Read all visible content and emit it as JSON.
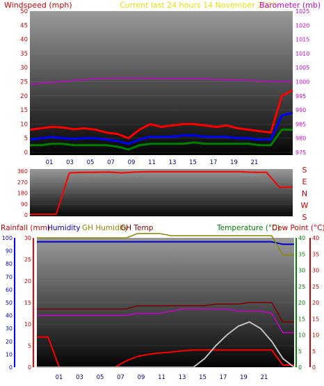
{
  "header": {
    "windspeed_label": "Windspeed (mph)",
    "period_label": "Current last 24 hours 14 November 2025",
    "barometer_label": "Barometer (mb)"
  },
  "bottom_header": {
    "rainfall_label": "Rainfall (mm)",
    "humidity_label": "Humidity",
    "gh_humidity_label": "GH Humidity",
    "gh_temp_label": "GH Temp",
    "temperature_label": "Temperature (°C)",
    "dewpoint_label": "Dew Point (°C)"
  },
  "colors": {
    "wind_gust": "#ff0000",
    "wind_avg": "#0000ff",
    "wind_low": "#008000",
    "barometer": "#cc00cc",
    "rainfall": "#ff0000",
    "humidity": "#0000cc",
    "gh_humidity": "#888800",
    "gh_temp": "#800000",
    "temperature": "#cc00cc",
    "dewpoint": "#cc0000",
    "solar": "#c0c0c0",
    "direction": "#ff0000",
    "title_yellow": "#ffff00"
  },
  "chart_data": [
    {
      "type": "line",
      "id": "wind-barometer",
      "x_ticks": [
        "01",
        "03",
        "05",
        "07",
        "09",
        "11",
        "13",
        "15",
        "17",
        "19",
        "21"
      ],
      "left_axis": {
        "ylim": [
          0,
          50
        ],
        "ticks": [
          "0",
          "5",
          "10",
          "15",
          "20",
          "25",
          "30",
          "35",
          "40",
          "45",
          "50"
        ]
      },
      "right_axis": {
        "ylim": [
          975,
          1025
        ],
        "ticks": [
          "975",
          "980",
          "985",
          "990",
          "995",
          "1000",
          "1005",
          "1010",
          "1015",
          "1020",
          "1025"
        ]
      },
      "series": [
        {
          "values": [
            8,
            8.5,
            9,
            8.8,
            8.2,
            8.5,
            8,
            7,
            6.5,
            5,
            8,
            10,
            9,
            9.5,
            10,
            10,
            9.5,
            9,
            9.5,
            8.5,
            8,
            7.5,
            7,
            20,
            22
          ]
        },
        {
          "values": [
            4.5,
            5,
            5.5,
            5,
            4.8,
            5,
            5,
            4.5,
            4,
            3,
            4.5,
            5.5,
            5.5,
            5.5,
            6,
            6,
            5.5,
            5.5,
            5.5,
            5,
            5,
            4.5,
            4.5,
            13,
            14
          ]
        },
        {
          "values": [
            2.5,
            2.5,
            3,
            3,
            2.5,
            2.5,
            2.5,
            2.5,
            2,
            1,
            2.5,
            3,
            3,
            3,
            3,
            3.5,
            3,
            3,
            3,
            3,
            3,
            2.5,
            2.5,
            8,
            8
          ]
        },
        {
          "values": [
            999,
            999.5,
            999.8,
            1000,
            1000.5,
            1000.8,
            1001,
            1001.2,
            1001.3,
            1001.3,
            1001.3,
            1001.2,
            1001.2,
            1001,
            1001,
            1001,
            1001,
            1000.8,
            1000.8,
            1000.6,
            1000.5,
            1000.3,
            1000,
            1000,
            1000
          ]
        }
      ]
    },
    {
      "type": "line",
      "id": "wind-direction",
      "y_ticks": [
        "0",
        "90",
        "180",
        "270",
        "360"
      ],
      "ylim": [
        0,
        360
      ],
      "direction_labels": [
        "S",
        "E",
        "N",
        "W",
        "S"
      ],
      "series": [
        {
          "values": [
            5,
            5,
            5,
            345,
            350,
            350,
            352,
            345,
            352,
            355,
            355,
            355,
            355,
            355,
            355,
            355,
            355,
            350,
            350,
            225,
            230
          ]
        }
      ]
    },
    {
      "type": "line",
      "id": "rain-humidity-temperature",
      "x_ticks": [
        "01",
        "03",
        "05",
        "07",
        "09",
        "11",
        "13",
        "15",
        "17",
        "19",
        "21"
      ],
      "humidity_axis": {
        "ylim": [
          0,
          100
        ],
        "ticks": [
          "0",
          "10",
          "20",
          "30",
          "40",
          "50",
          "60",
          "70",
          "80",
          "90",
          "100"
        ]
      },
      "rain_axis": {
        "ylim": [
          0,
          30
        ],
        "ticks": [
          "0",
          "5",
          "10",
          "15",
          "20",
          "25",
          "30"
        ]
      },
      "temperature_axis": {
        "ylim": [
          0,
          40
        ],
        "ticks": [
          "0",
          "5",
          "10",
          "15",
          "20",
          "25",
          "30",
          "35",
          "40"
        ]
      },
      "dewpoint_axis": {
        "ylim": [
          0,
          40
        ],
        "ticks": [
          "0",
          "5",
          "10",
          "15",
          "20",
          "25",
          "30",
          "35",
          "40"
        ]
      },
      "series": [
        {
          "values": [
            97,
            97,
            97,
            97,
            97,
            97,
            97,
            97,
            97,
            97,
            97,
            97,
            97,
            97,
            97,
            97,
            97,
            97,
            97,
            97,
            97,
            97,
            95,
            95
          ]
        },
        {
          "values": [
            7,
            7,
            0,
            0,
            0,
            0,
            0,
            0,
            1.5,
            2.5,
            3,
            3.3,
            3.5,
            3.8,
            4,
            4,
            4,
            4,
            4,
            4,
            4,
            4,
            0.5,
            0.5
          ]
        },
        {
          "values": [
            30,
            30,
            30,
            30,
            30,
            30,
            30,
            30,
            30,
            31,
            31,
            31,
            30.5,
            30.5,
            30.5,
            30.5,
            30.5,
            30.5,
            30.5,
            30.5,
            30.5,
            30.5,
            26,
            26
          ]
        },
        {
          "values": [
            18,
            18,
            18,
            18,
            18,
            18,
            18,
            18,
            18,
            19,
            19,
            19,
            19,
            19,
            19,
            19,
            19.5,
            19.5,
            19.5,
            20,
            20,
            20,
            14,
            14
          ]
        },
        {
          "values": [
            12,
            12,
            12,
            12,
            12,
            12,
            12,
            12,
            12,
            12.5,
            12.5,
            12.5,
            13,
            13.5,
            13.5,
            13.5,
            13.5,
            13.5,
            13,
            13,
            13,
            12.5,
            8,
            8
          ]
        },
        {
          "values": [
            0,
            0,
            0,
            0,
            0,
            0,
            0,
            0,
            0,
            0,
            0,
            0,
            0,
            0,
            0,
            2,
            5,
            7.5,
            9.5,
            10.5,
            9,
            6,
            2,
            0
          ]
        }
      ]
    }
  ]
}
